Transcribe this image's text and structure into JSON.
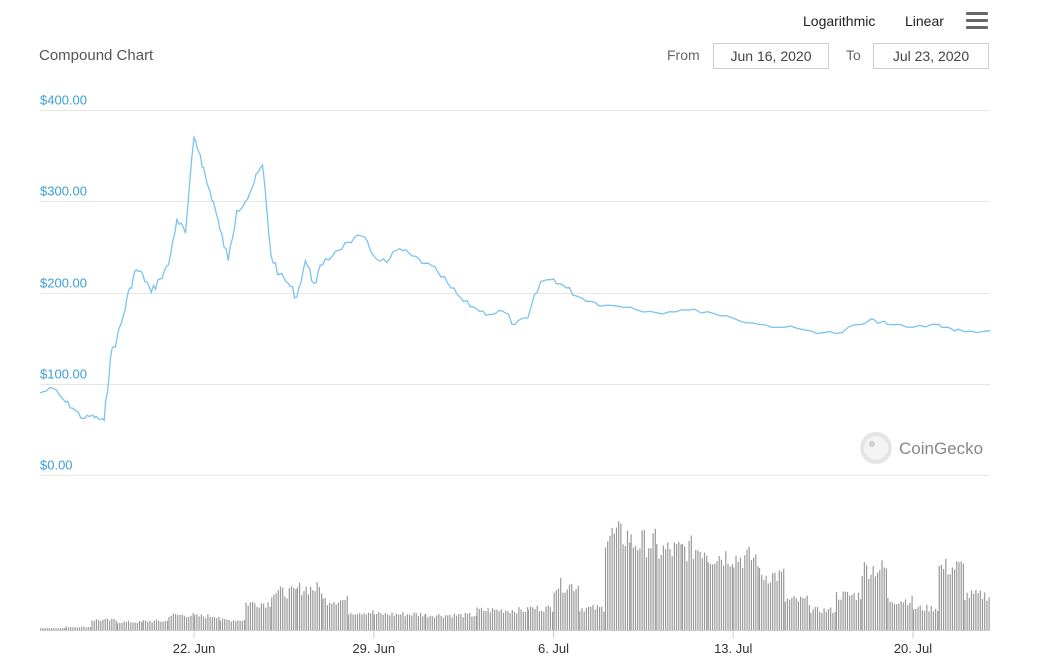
{
  "header": {
    "title": "Compound Chart",
    "scale_log": "Logarithmic",
    "scale_linear": "Linear",
    "from_label": "From",
    "from_value": "Jun 16, 2020",
    "to_label": "To",
    "to_value": "Jul 23, 2020"
  },
  "watermark": "CoinGecko",
  "colors": {
    "price_line": "#7cc3f0",
    "volume_bars": "#999999",
    "grid": "#e6e6e6",
    "y_tick_text": "#3aa0d8"
  },
  "chart_data": {
    "type": "line",
    "title": "Compound Chart",
    "x_start": "Jun 16, 2020",
    "x_end": "Jul 23, 2020",
    "x_ticks": [
      "22. Jun",
      "29. Jun",
      "6. Jul",
      "13. Jul",
      "20. Jul"
    ],
    "y_ticks": [
      "$0.00",
      "$100.00",
      "$200.00",
      "$300.00",
      "$400.00"
    ],
    "ylim": [
      0,
      400
    ],
    "grid": true,
    "series": [
      {
        "values": {
          "x": [
            "Jun 16",
            "Jun 16",
            "Jun 17",
            "Jun 17",
            "Jun 17",
            "Jun 18",
            "Jun 18",
            "Jun 18",
            "Jun 18",
            "Jun 19",
            "Jun 19",
            "Jun 19",
            "Jun 19",
            "Jun 20",
            "Jun 20",
            "Jun 20",
            "Jun 21",
            "Jun 21",
            "Jun 21",
            "Jun 22",
            "Jun 22",
            "Jun 22",
            "Jun 22",
            "Jun 23",
            "Jun 23",
            "Jun 23",
            "Jun 24",
            "Jun 24",
            "Jun 24",
            "Jun 25",
            "Jun 25",
            "Jun 25",
            "Jun 26",
            "Jun 26",
            "Jun 26",
            "Jun 27",
            "Jun 27",
            "Jun 28",
            "Jun 28",
            "Jun 29",
            "Jun 29",
            "Jun 30",
            "Jun 30",
            "Jul 1",
            "Jul 1",
            "Jul 2",
            "Jul 2",
            "Jul 3",
            "Jul 3",
            "Jul 4",
            "Jul 4",
            "Jul 5",
            "Jul 5",
            "Jul 6",
            "Jul 6",
            "Jul 7",
            "Jul 7",
            "Jul 8",
            "Jul 9",
            "Jul 10",
            "Jul 11",
            "Jul 12",
            "Jul 13",
            "Jul 14",
            "Jul 15",
            "Jul 16",
            "Jul 17",
            "Jul 18",
            "Jul 18",
            "Jul 19",
            "Jul 20",
            "Jul 21",
            "Jul 21",
            "Jul 22",
            "Jul 23"
          ],
          "y": [
            90,
            95,
            80,
            72,
            62,
            65,
            62,
            60,
            130,
            150,
            175,
            205,
            225,
            220,
            200,
            215,
            230,
            280,
            265,
            370,
            350,
            320,
            300,
            270,
            235,
            290,
            300,
            320,
            340,
            240,
            220,
            210,
            195,
            235,
            210,
            230,
            245,
            255,
            262,
            240,
            233,
            248,
            240,
            232,
            222,
            205,
            190,
            182,
            176,
            180,
            165,
            172,
            212,
            215,
            205,
            195,
            190,
            186,
            184,
            178,
            181,
            179,
            172,
            165,
            162,
            158,
            155,
            165,
            170,
            165,
            162,
            165,
            160,
            157,
            158
          ]
        }
      }
    ],
    "volume": {
      "type": "bar",
      "ylim": [
        0,
        100
      ],
      "segments": [
        {
          "start": "Jun 16",
          "end": "Jun 17",
          "level": 2
        },
        {
          "start": "Jun 17",
          "end": "Jun 18",
          "level": 3
        },
        {
          "start": "Jun 18",
          "end": "Jun 19",
          "level": 10
        },
        {
          "start": "Jun 19",
          "end": "Jun 20",
          "level": 8
        },
        {
          "start": "Jun 20",
          "end": "Jun 21",
          "level": 9
        },
        {
          "start": "Jun 21",
          "end": "Jun 22",
          "level": 15
        },
        {
          "start": "Jun 22",
          "end": "Jun 23",
          "level": 14
        },
        {
          "start": "Jun 23",
          "end": "Jun 24",
          "level": 10
        },
        {
          "start": "Jun 24",
          "end": "Jun 25",
          "level": 27
        },
        {
          "start": "Jun 25",
          "end": "Jun 26",
          "level": 38
        },
        {
          "start": "Jun 26",
          "end": "Jun 27",
          "level": 42
        },
        {
          "start": "Jun 27",
          "end": "Jun 28",
          "level": 30
        },
        {
          "start": "Jun 28",
          "end": "Jun 29",
          "level": 18
        },
        {
          "start": "Jun 29",
          "end": "Jul 1",
          "level": 16
        },
        {
          "start": "Jul 1",
          "end": "Jul 3",
          "level": 15
        },
        {
          "start": "Jul 3",
          "end": "Jul 5",
          "level": 20
        },
        {
          "start": "Jul 5",
          "end": "Jul 6",
          "level": 22
        },
        {
          "start": "Jul 6",
          "end": "Jul 7",
          "level": 45
        },
        {
          "start": "Jul 7",
          "end": "Jul 8",
          "level": 22
        },
        {
          "start": "Jul 8",
          "end": "Jul 9",
          "level": 95
        },
        {
          "start": "Jul 9",
          "end": "Jul 10",
          "level": 88
        },
        {
          "start": "Jul 10",
          "end": "Jul 11",
          "level": 80
        },
        {
          "start": "Jul 11",
          "end": "Jul 12",
          "level": 82
        },
        {
          "start": "Jul 12",
          "end": "Jul 13",
          "level": 75
        },
        {
          "start": "Jul 13",
          "end": "Jul 14",
          "level": 73
        },
        {
          "start": "Jul 14",
          "end": "Jul 15",
          "level": 55
        },
        {
          "start": "Jul 15",
          "end": "Jul 16",
          "level": 30
        },
        {
          "start": "Jul 16",
          "end": "Jul 17",
          "level": 20
        },
        {
          "start": "Jul 17",
          "end": "Jul 18",
          "level": 35
        },
        {
          "start": "Jul 18",
          "end": "Jul 19",
          "level": 62
        },
        {
          "start": "Jul 19",
          "end": "Jul 20",
          "level": 30
        },
        {
          "start": "Jul 20",
          "end": "Jul 21",
          "level": 22
        },
        {
          "start": "Jul 21",
          "end": "Jul 22",
          "level": 63
        },
        {
          "start": "Jul 22",
          "end": "Jul 23",
          "level": 35
        }
      ]
    }
  }
}
